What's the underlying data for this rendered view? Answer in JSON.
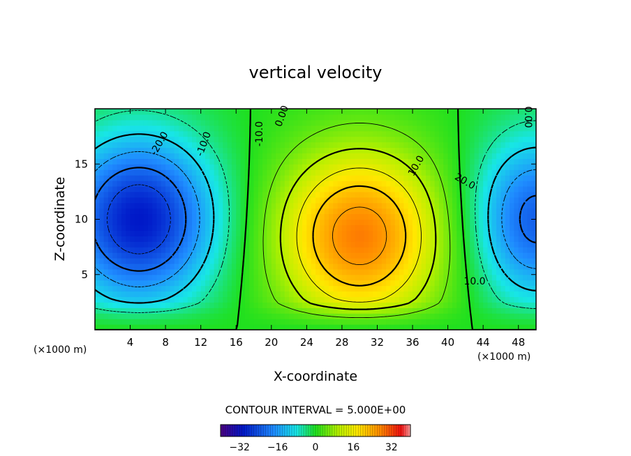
{
  "chart_data": {
    "type": "heatmap",
    "title": "vertical velocity",
    "xlabel": "X-coordinate",
    "ylabel": "Z-coordinate",
    "x_unit_left": "(×1000 m)",
    "x_unit_right": "(×1000 m)",
    "xlim": [
      0,
      50
    ],
    "ylim": [
      0,
      20
    ],
    "x_ticks": [
      4,
      8,
      12,
      16,
      20,
      24,
      28,
      32,
      36,
      40,
      44,
      48
    ],
    "y_ticks": [
      5,
      10,
      15
    ],
    "contour_interval_label": "CONTOUR INTERVAL = 5.000E+00",
    "contour_interval": 5,
    "contour_labels": [
      "-20.0",
      "-10.0",
      "-10.0",
      "0.00",
      "0.00",
      "10.0",
      "20.0",
      "10.0"
    ],
    "colorbar": {
      "range": [
        -40,
        40
      ],
      "ticks": [
        "-32",
        "-16",
        "0",
        "16",
        "32"
      ],
      "colormap": "rainbow"
    },
    "features": [
      {
        "kind": "minimum",
        "x": 5,
        "z": 10,
        "value": -30
      },
      {
        "kind": "maximum",
        "x": 30,
        "z": 8.5,
        "value": 28
      },
      {
        "kind": "minimum",
        "x": 50,
        "z": 10,
        "value": -22
      }
    ]
  }
}
